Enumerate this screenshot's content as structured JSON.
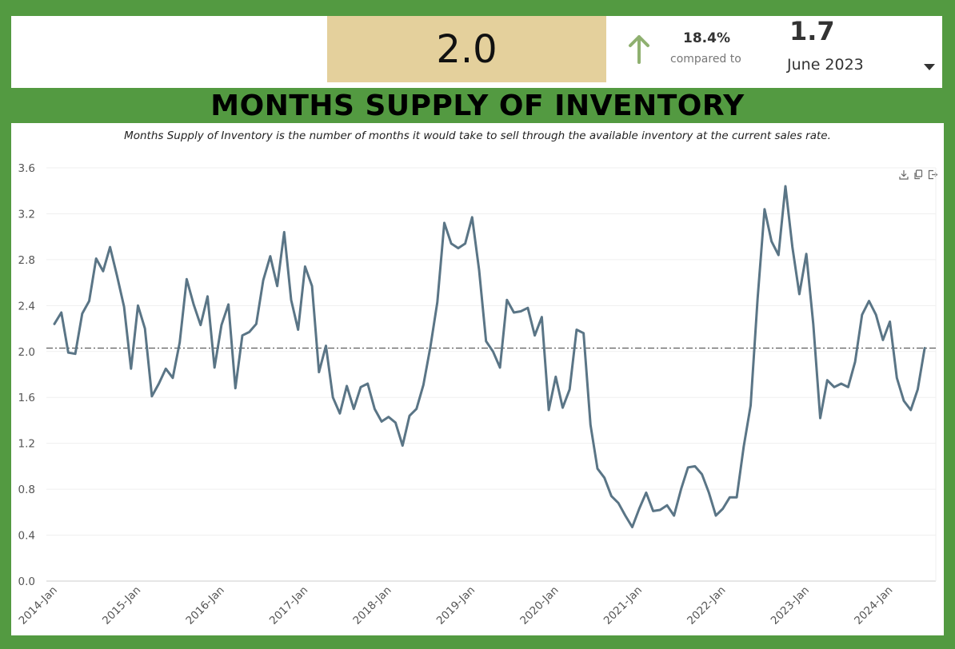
{
  "kpi": {
    "value": "2.0",
    "change_pct": "18.4%",
    "compared_label": "compared to",
    "compare_value": "1.7",
    "compare_period": "June 2023"
  },
  "colors": {
    "background": "#539a41",
    "value_box": "#e4d09c",
    "trend_up": "#8fb070",
    "line": "#5a7586"
  },
  "title": "MONTHS SUPPLY OF INVENTORY",
  "subtitle": "Months Supply of Inventory is the number of months it would take to sell through the available inventory at the current sales rate.",
  "toolbar": {
    "icons": [
      "download-icon",
      "copy-icon",
      "export-icon"
    ]
  },
  "chart_data": {
    "type": "line",
    "title": "",
    "xlabel": "",
    "ylabel": "",
    "ylim": [
      0,
      3.6
    ],
    "yticks": [
      "0.0",
      "0.4",
      "0.8",
      "1.2",
      "1.6",
      "2.0",
      "2.4",
      "2.8",
      "3.2",
      "3.6"
    ],
    "xticks": [
      "2014-Jan",
      "2015-Jan",
      "2016-Jan",
      "2017-Jan",
      "2018-Jan",
      "2019-Jan",
      "2020-Jan",
      "2021-Jan",
      "2022-Jan",
      "2023-Jan",
      "2024-Jan"
    ],
    "x_start": "2014-01",
    "grid": true,
    "reference_line": 2.03,
    "series": [
      {
        "values": [
          2.24,
          2.34,
          1.99,
          1.98,
          2.33,
          2.44,
          2.81,
          2.7,
          2.91,
          2.66,
          2.39,
          1.85,
          2.4,
          2.2,
          1.61,
          1.72,
          1.85,
          1.77,
          2.08,
          2.63,
          2.41,
          2.23,
          2.48,
          1.86,
          2.23,
          2.41,
          1.68,
          2.14,
          2.17,
          2.24,
          2.62,
          2.83,
          2.57,
          3.04,
          2.45,
          2.19,
          2.74,
          2.57,
          1.82,
          2.05,
          1.6,
          1.46,
          1.7,
          1.5,
          1.69,
          1.72,
          1.5,
          1.39,
          1.43,
          1.38,
          1.18,
          1.44,
          1.5,
          1.71,
          2.04,
          2.43,
          3.12,
          2.94,
          2.9,
          2.94,
          3.17,
          2.71,
          2.09,
          2.0,
          1.86,
          2.45,
          2.34,
          2.35,
          2.38,
          2.14,
          2.3,
          1.49,
          1.78,
          1.51,
          1.67,
          2.19,
          2.16,
          1.36,
          0.98,
          0.9,
          0.74,
          0.68,
          0.57,
          0.47,
          0.63,
          0.77,
          0.61,
          0.62,
          0.66,
          0.57,
          0.8,
          0.99,
          1.0,
          0.93,
          0.77,
          0.57,
          0.63,
          0.73,
          0.73,
          1.17,
          1.53,
          2.46,
          3.24,
          2.96,
          2.84,
          3.44,
          2.91,
          2.5,
          2.85,
          2.24,
          1.42,
          1.75,
          1.69,
          1.72,
          1.69,
          1.91,
          2.32,
          2.44,
          2.32,
          2.1,
          2.26,
          1.77,
          1.57,
          1.49,
          1.67,
          2.03
        ]
      }
    ]
  }
}
